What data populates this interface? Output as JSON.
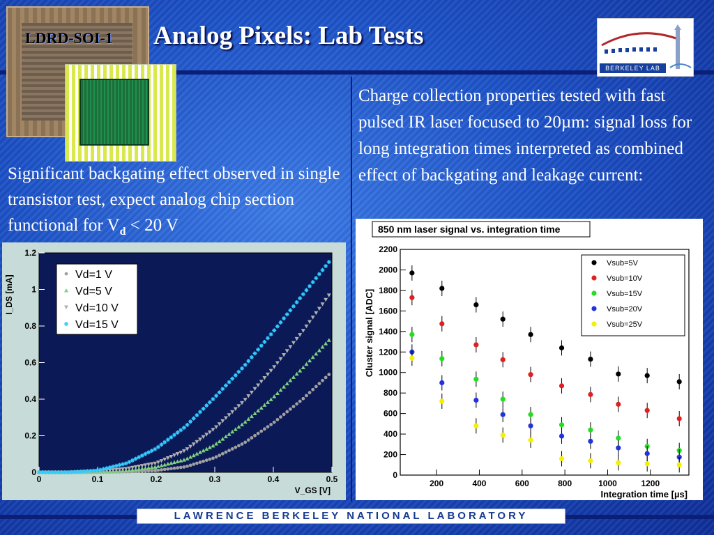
{
  "slide": {
    "tag": "LDRD-SOI-1",
    "title": "Analog Pixels: Lab Tests",
    "logo_text": "BERKELEY LAB",
    "left_text_a": "Significant backgating effect observed in single transistor test, expect analog chip section functional for V",
    "left_text_sub": "d",
    "left_text_b": " < 20 V",
    "right_text": "Charge collection properties tested with fast pulsed IR laser focused to 20µm: signal loss for long integration times interpreted as combined effect of backgating and leakage current:",
    "footer": "LAWRENCE BERKELEY NATIONAL LABORATORY"
  },
  "chart_data": [
    {
      "type": "scatter",
      "title": "",
      "xlabel": "V_GS [V]",
      "ylabel": "I_DS [mA]",
      "xlim": [
        0,
        0.5
      ],
      "ylim": [
        0,
        1.2
      ],
      "x_ticks": [
        "0",
        "0.1",
        "0.2",
        "0.3",
        "0.4",
        "0.5"
      ],
      "y_ticks": [
        "0",
        "0.2",
        "0.4",
        "0.6",
        "0.8",
        "1",
        "1.2"
      ],
      "legend_position": "top-left",
      "x": [
        0.05,
        0.1,
        0.15,
        0.2,
        0.25,
        0.3,
        0.35,
        0.4,
        0.45,
        0.5
      ],
      "series": [
        {
          "name": "Vd=1 V",
          "color": "#a0a0a0",
          "marker": "circle",
          "values": [
            0.0,
            0.0,
            0.003,
            0.01,
            0.03,
            0.08,
            0.16,
            0.27,
            0.4,
            0.55
          ]
        },
        {
          "name": "Vd=5 V",
          "color": "#7fd07f",
          "marker": "triangle-up",
          "values": [
            0.0,
            0.002,
            0.01,
            0.03,
            0.07,
            0.15,
            0.27,
            0.41,
            0.57,
            0.74
          ]
        },
        {
          "name": "Vd=10 V",
          "color": "#b0b0b0",
          "marker": "triangle-down",
          "values": [
            0.0,
            0.005,
            0.02,
            0.05,
            0.12,
            0.24,
            0.39,
            0.57,
            0.77,
            0.99
          ]
        },
        {
          "name": "Vd=15 V",
          "color": "#33ccff",
          "marker": "star",
          "values": [
            0.0,
            0.01,
            0.05,
            0.13,
            0.25,
            0.41,
            0.58,
            0.77,
            0.97,
            1.17
          ]
        }
      ]
    },
    {
      "type": "scatter",
      "title": "850 nm laser signal vs. integration time",
      "xlabel": "Integration time [µs]",
      "ylabel": "Cluster signal [ADC]",
      "xlim": [
        30,
        1380
      ],
      "ylim": [
        0,
        2200
      ],
      "x_ticks": [
        "200",
        "400",
        "600",
        "800",
        "1000",
        "1200"
      ],
      "y_ticks": [
        "0",
        "200",
        "400",
        "600",
        "800",
        "1000",
        "1200",
        "1400",
        "1600",
        "1800",
        "2000",
        "2200"
      ],
      "legend_position": "top-right",
      "x": [
        85,
        225,
        385,
        510,
        640,
        785,
        920,
        1050,
        1185,
        1335
      ],
      "series": [
        {
          "name": "Vsub=5V",
          "color": "#000000",
          "values": [
            1970,
            1820,
            1660,
            1520,
            1370,
            1240,
            1130,
            985,
            970,
            910
          ]
        },
        {
          "name": "Vsub=10V",
          "color": "#e02020",
          "values": [
            1730,
            1475,
            1270,
            1125,
            980,
            870,
            785,
            690,
            630,
            550
          ]
        },
        {
          "name": "Vsub=15V",
          "color": "#22dd22",
          "values": [
            1370,
            1135,
            935,
            740,
            590,
            490,
            440,
            360,
            280,
            240
          ]
        },
        {
          "name": "Vsub=20V",
          "color": "#2233dd",
          "values": [
            1200,
            900,
            730,
            590,
            480,
            380,
            330,
            265,
            210,
            175
          ]
        },
        {
          "name": "Vsub=25V",
          "color": "#f5f000",
          "values": [
            1140,
            720,
            480,
            390,
            340,
            160,
            140,
            120,
            110,
            100
          ]
        }
      ]
    }
  ]
}
